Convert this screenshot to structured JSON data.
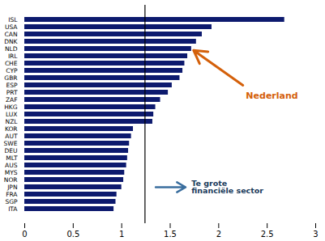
{
  "chart_data": {
    "type": "bar",
    "orientation": "horizontal",
    "categories": [
      "ISL",
      "USA",
      "CAN",
      "DNK",
      "NLD",
      "IRL",
      "CHE",
      "CYP",
      "GBR",
      "ESP",
      "PRT",
      "ZAF",
      "HKG",
      "LUX",
      "NZL",
      "KOR",
      "AUT",
      "SWE",
      "DEU",
      "MLT",
      "AUS",
      "MYS",
      "NOR",
      "JPN",
      "FRA",
      "SGP",
      "ITA"
    ],
    "values": [
      2.68,
      1.93,
      1.83,
      1.77,
      1.72,
      1.68,
      1.65,
      1.63,
      1.6,
      1.52,
      1.48,
      1.4,
      1.35,
      1.33,
      1.32,
      1.12,
      1.1,
      1.08,
      1.07,
      1.06,
      1.05,
      1.03,
      1.02,
      1.0,
      0.95,
      0.94,
      0.92
    ],
    "color": "#0d1a6e",
    "threshold": 1.24,
    "xlim": [
      0,
      3
    ],
    "xticks": [
      0,
      0.5,
      1,
      1.5,
      2,
      2.5,
      3
    ],
    "grid": false,
    "annotations": [
      {
        "text": "Nederland",
        "color": "#d4600a",
        "arrow_color": "#d4600a",
        "target": "NLD"
      },
      {
        "text": "Te grote\nfinanciële sector",
        "color": "#1a3a5a",
        "arrow_color": "#3a6e9e",
        "target": "JPN"
      }
    ]
  }
}
